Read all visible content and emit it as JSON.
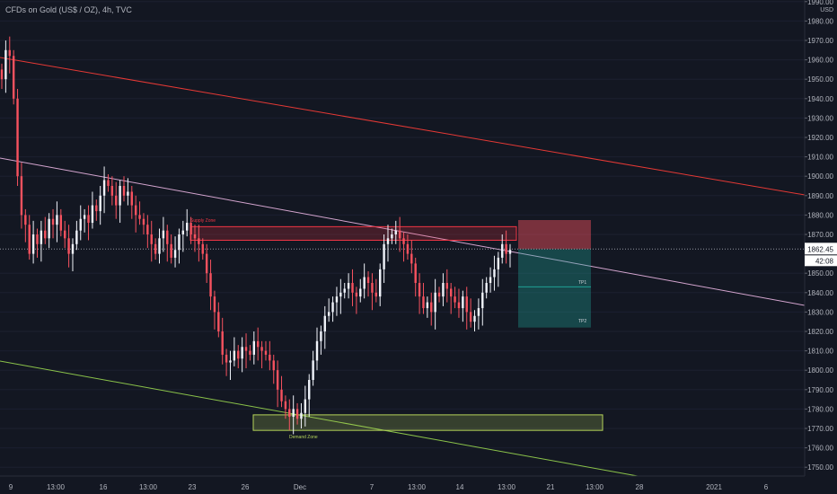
{
  "header": {
    "title": "CFDs on Gold (US$ / OZ), 4h, TVC"
  },
  "axis": {
    "currency": "USD",
    "price_ticks": [
      "1990.00",
      "1980.00",
      "1970.00",
      "1960.00",
      "1950.00",
      "1940.00",
      "1930.00",
      "1920.00",
      "1910.00",
      "1900.00",
      "1890.00",
      "1880.00",
      "1870.00",
      "1850.00",
      "1840.00",
      "1830.00",
      "1820.00",
      "1810.00",
      "1800.00",
      "1790.00",
      "1780.00",
      "1770.00",
      "1760.00",
      "1750.00"
    ],
    "last_price": "1862.45",
    "countdown": "42:08",
    "time_ticks": [
      "9",
      "13:00",
      "16",
      "13:00",
      "23",
      "26",
      "Dec",
      "7",
      "13:00",
      "14",
      "13:00",
      "21",
      "13:00",
      "28",
      "2021",
      "6"
    ]
  },
  "annotations": {
    "supply_zone": "Supply Zone",
    "demand_zone": "Demand Zone",
    "tp1": "TP1",
    "tp2": "TP2"
  },
  "chart_data": {
    "type": "candlestick",
    "symbol": "CFDs on Gold (US$ / OZ)",
    "timeframe": "4h",
    "ylim": [
      1745,
      1995
    ],
    "last_price": 1862.45,
    "candles_close": [
      1950,
      1965,
      1962,
      1940,
      1900,
      1880,
      1875,
      1860,
      1870,
      1865,
      1872,
      1868,
      1878,
      1875,
      1880,
      1872,
      1868,
      1860,
      1865,
      1872,
      1878,
      1880,
      1876,
      1885,
      1882,
      1890,
      1898,
      1895,
      1890,
      1885,
      1895,
      1890,
      1892,
      1885,
      1880,
      1878,
      1875,
      1870,
      1865,
      1860,
      1868,
      1872,
      1865,
      1858,
      1862,
      1870,
      1872,
      1876,
      1870,
      1868,
      1865,
      1860,
      1850,
      1838,
      1830,
      1820,
      1808,
      1804,
      1805,
      1810,
      1806,
      1812,
      1810,
      1808,
      1815,
      1812,
      1810,
      1808,
      1805,
      1800,
      1790,
      1784,
      1780,
      1776,
      1780,
      1775,
      1778,
      1785,
      1795,
      1805,
      1815,
      1820,
      1828,
      1830,
      1835,
      1838,
      1840,
      1842,
      1845,
      1840,
      1838,
      1842,
      1848,
      1845,
      1840,
      1838,
      1852,
      1865,
      1868,
      1870,
      1872,
      1868,
      1865,
      1860,
      1855,
      1845,
      1838,
      1832,
      1835,
      1830,
      1840,
      1838,
      1845,
      1842,
      1838,
      1835,
      1832,
      1838,
      1830,
      1825,
      1828,
      1832,
      1840,
      1845,
      1848,
      1852,
      1858,
      1865,
      1860,
      1862
    ],
    "supply_zone": [
      1867,
      1874
    ],
    "demand_zone": [
      1769,
      1777
    ],
    "tp1": 1843,
    "tp2": 1822
  },
  "colors": {
    "background": "#131722",
    "bull": "#f0f3fa",
    "bear": "#f7525f",
    "axis_text": "#b2b5be",
    "red_line": "#e53935",
    "pink_line": "#d4a5cf",
    "green_line": "#8bc34a",
    "supply_zone": "#f23645",
    "demand_zone": "#b5d45a",
    "stop_box": "#f7525f",
    "target_box": "#1fa095"
  }
}
